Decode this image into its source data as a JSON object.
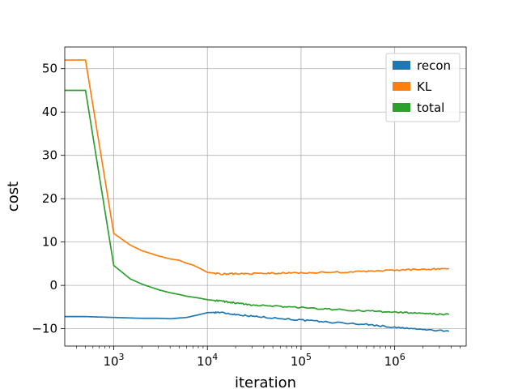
{
  "chart_data": {
    "type": "line",
    "title": "",
    "xlabel": "iteration",
    "ylabel": "cost",
    "x_scale": "log",
    "xlim": [
      300,
      5800000
    ],
    "ylim": [
      -14,
      55
    ],
    "grid": true,
    "legend_placement": "top-right",
    "x_tick_labels": [
      {
        "value": 1000,
        "base": "10",
        "exp": "3"
      },
      {
        "value": 10000,
        "base": "10",
        "exp": "4"
      },
      {
        "value": 100000,
        "base": "10",
        "exp": "5"
      },
      {
        "value": 1000000,
        "base": "10",
        "exp": "6"
      }
    ],
    "y_ticks": [
      50,
      40,
      30,
      20,
      10,
      0,
      -10
    ],
    "y_tick_labels": [
      "50",
      "40",
      "30",
      "20",
      "10",
      "0",
      "−10"
    ],
    "series": [
      {
        "name": "recon",
        "color": "#1f77b4",
        "x": [
          300,
          500,
          1000,
          2000,
          3000,
          4000,
          6000,
          8000,
          10000,
          13000,
          20000,
          30000,
          50000,
          100000,
          200000,
          500000,
          1000000,
          2000000,
          3800000
        ],
        "y": [
          -7.2,
          -7.2,
          -7.4,
          -7.6,
          -7.6,
          -7.7,
          -7.4,
          -6.8,
          -6.3,
          -6.2,
          -6.7,
          -7.1,
          -7.5,
          -8.0,
          -8.5,
          -9.0,
          -9.7,
          -10.2,
          -10.6
        ]
      },
      {
        "name": "KL",
        "color": "#ff7f0e",
        "x": [
          300,
          500,
          1000,
          1500,
          2000,
          3000,
          4000,
          5000,
          6000,
          7000,
          8000,
          10000,
          15000,
          20000,
          30000,
          50000,
          100000,
          200000,
          500000,
          1000000,
          2000000,
          3800000
        ],
        "y": [
          52,
          52,
          12,
          9.3,
          8.0,
          6.8,
          6.1,
          5.8,
          5.1,
          4.7,
          4.1,
          3.0,
          2.6,
          2.7,
          2.7,
          2.8,
          2.9,
          3.0,
          3.2,
          3.5,
          3.7,
          3.9
        ]
      },
      {
        "name": "total",
        "color": "#2ca02c",
        "x": [
          300,
          500,
          1000,
          1500,
          2000,
          3000,
          4000,
          5000,
          6000,
          8000,
          10000,
          15000,
          20000,
          30000,
          50000,
          100000,
          200000,
          500000,
          1000000,
          2000000,
          3800000
        ],
        "y": [
          45,
          45,
          4.6,
          1.5,
          0.3,
          -1.0,
          -1.7,
          -2.1,
          -2.5,
          -2.9,
          -3.3,
          -3.7,
          -4.1,
          -4.5,
          -4.8,
          -5.1,
          -5.5,
          -5.9,
          -6.2,
          -6.5,
          -6.7
        ]
      }
    ]
  }
}
